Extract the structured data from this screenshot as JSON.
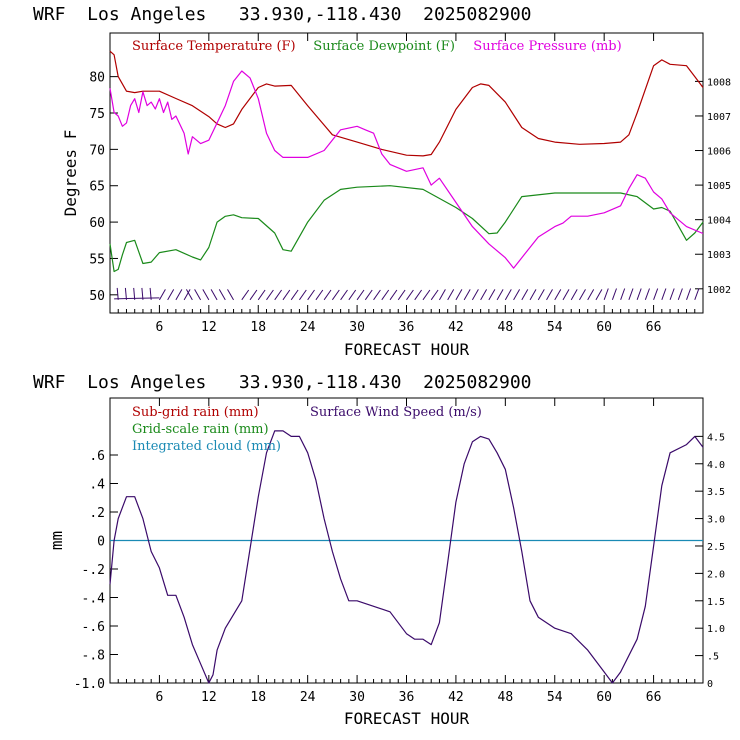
{
  "chart_data": [
    {
      "type": "line",
      "title": "WRF  Los Angeles   33.930,-118.430  2025082900",
      "xlabel": "FORECAST HOUR",
      "ylabel": "Degrees F",
      "xlim": [
        0,
        72
      ],
      "xticks": [
        6,
        12,
        18,
        24,
        30,
        36,
        42,
        48,
        54,
        60,
        66
      ],
      "ylim": [
        47.5,
        86
      ],
      "yticks": [
        50,
        55,
        60,
        65,
        70,
        75,
        80
      ],
      "y2lim": [
        1001.3,
        1009.4
      ],
      "y2ticks": [
        1002,
        1003,
        1004,
        1005,
        1006,
        1007,
        1008
      ],
      "series": [
        {
          "name": "Surface Temperature (F)",
          "axis": "left",
          "color": "#b00000",
          "x": [
            0,
            0.5,
            1,
            2,
            3,
            4,
            6,
            8,
            10,
            12,
            13,
            14,
            15,
            16,
            18,
            19,
            20,
            22,
            24,
            27,
            30,
            33,
            36,
            38,
            39,
            40,
            42,
            44,
            45,
            46,
            48,
            50,
            52,
            54,
            57,
            60,
            62,
            63,
            64,
            66,
            67,
            68,
            70,
            71,
            72
          ],
          "y": [
            83.5,
            83,
            80,
            78,
            77.8,
            78,
            78,
            77,
            76,
            74.5,
            73.5,
            73,
            73.5,
            75.5,
            78.5,
            79,
            78.7,
            78.8,
            76,
            72,
            71,
            70,
            69.2,
            69.1,
            69.3,
            71,
            75.5,
            78.5,
            79,
            78.8,
            76.5,
            73,
            71.5,
            71,
            70.7,
            70.8,
            71,
            72,
            75,
            81.5,
            82.3,
            81.7,
            81.5,
            80,
            78.5
          ]
        },
        {
          "name": "Surface Dewpoint (F)",
          "axis": "left",
          "color": "#1a8a1a",
          "x": [
            0,
            0.5,
            1,
            1.5,
            2,
            3,
            4,
            5,
            6,
            8,
            10,
            11,
            12,
            13,
            14,
            15,
            16,
            18,
            20,
            21,
            22,
            24,
            26,
            28,
            30,
            34,
            38,
            42,
            44,
            46,
            47,
            48,
            50,
            54,
            58,
            60,
            62,
            64,
            66,
            67,
            68,
            70,
            71,
            72
          ],
          "y": [
            57,
            53.2,
            53.5,
            55.5,
            57.2,
            57.5,
            54.3,
            54.5,
            55.8,
            56.2,
            55.2,
            54.8,
            56.5,
            60,
            60.8,
            61,
            60.6,
            60.5,
            58.5,
            56.2,
            56,
            60,
            63,
            64.5,
            64.8,
            65,
            64.5,
            62,
            60.5,
            58.4,
            58.5,
            60,
            63.5,
            64,
            64,
            64,
            64,
            63.5,
            61.8,
            62,
            61.5,
            57.5,
            58.5,
            60
          ]
        },
        {
          "name": "Surface Pressure (mb)",
          "axis": "right",
          "color": "#e000e0",
          "x": [
            0,
            0.5,
            1,
            1.5,
            2,
            2.5,
            3,
            3.5,
            4,
            4.5,
            5,
            5.5,
            6,
            6.5,
            7,
            7.5,
            8,
            9,
            9.5,
            10,
            11,
            12,
            13,
            14,
            15,
            16,
            17,
            18,
            19,
            20,
            21,
            22,
            24,
            26,
            28,
            30,
            31,
            32,
            33,
            34,
            36,
            38,
            39,
            40,
            42,
            44,
            46,
            48,
            49,
            50,
            52,
            54,
            55,
            56,
            58,
            60,
            62,
            63,
            64,
            65,
            66,
            67,
            68,
            70,
            72
          ],
          "y": [
            1007.8,
            1007.1,
            1007.0,
            1006.7,
            1006.8,
            1007.3,
            1007.5,
            1007.1,
            1007.7,
            1007.3,
            1007.4,
            1007.2,
            1007.5,
            1007.1,
            1007.4,
            1006.9,
            1007.0,
            1006.5,
            1005.9,
            1006.4,
            1006.2,
            1006.3,
            1006.8,
            1007.3,
            1008.0,
            1008.3,
            1008.1,
            1007.5,
            1006.5,
            1006.0,
            1005.8,
            1005.8,
            1005.8,
            1006.0,
            1006.6,
            1006.7,
            1006.6,
            1006.5,
            1005.9,
            1005.6,
            1005.4,
            1005.5,
            1005.0,
            1005.2,
            1004.5,
            1003.8,
            1003.3,
            1002.9,
            1002.6,
            1002.9,
            1003.5,
            1003.8,
            1003.9,
            1004.1,
            1004.1,
            1004.2,
            1004.4,
            1004.9,
            1005.3,
            1005.2,
            1004.8,
            1004.6,
            1004.2,
            1003.8,
            1003.6
          ]
        }
      ],
      "annotations": [
        "wind barbs along 50°F line"
      ]
    },
    {
      "type": "line",
      "title": "WRF  Los Angeles   33.930,-118.430  2025082900",
      "xlabel": "FORECAST HOUR",
      "ylabel": "mm",
      "xlim": [
        0,
        72
      ],
      "xticks": [
        6,
        12,
        18,
        24,
        30,
        36,
        42,
        48,
        54,
        60,
        66
      ],
      "ylim": [
        -1.0,
        1.0
      ],
      "yticks": [
        -1.0,
        -0.8,
        -0.6,
        -0.4,
        -0.2,
        0,
        0.2,
        0.4,
        0.6
      ],
      "ytick_labels": [
        "-1.0",
        "-.8",
        "-.6",
        "-.4",
        "-.2",
        "0",
        ".2",
        ".4",
        ".6"
      ],
      "y2lim": [
        0,
        5.2
      ],
      "y2ticks": [
        0,
        0.5,
        1.0,
        1.5,
        2.0,
        2.5,
        3.0,
        3.5,
        4.0,
        4.5
      ],
      "y2tick_labels": [
        "0",
        ".5",
        "1.0",
        "1.5",
        "2.0",
        "2.5",
        "3.0",
        "3.5",
        "4.0",
        "4.5"
      ],
      "series": [
        {
          "name": "Sub-grid rain (mm)",
          "axis": "left",
          "color": "#b00000",
          "x": [],
          "y": []
        },
        {
          "name": "Grid-scale rain (mm)",
          "axis": "left",
          "color": "#1a8a1a",
          "x": [],
          "y": []
        },
        {
          "name": "Integrated cloud (mm)",
          "axis": "left",
          "color": "#1a8ab4",
          "x": [
            0,
            72
          ],
          "y": [
            0,
            0
          ]
        },
        {
          "name": "Surface Wind Speed (m/s)",
          "axis": "right",
          "color": "#3a0a6a",
          "x": [
            0,
            0.5,
            1,
            2,
            3,
            4,
            5,
            6,
            7,
            8,
            9,
            10,
            11,
            12,
            12.5,
            13,
            14,
            16,
            18,
            19,
            20,
            21,
            22,
            23,
            24,
            25,
            26,
            27,
            28,
            29,
            30,
            32,
            34,
            36,
            37,
            38,
            39,
            40,
            41,
            42,
            43,
            44,
            45,
            46,
            47,
            48,
            49,
            50,
            51,
            52,
            54,
            56,
            58,
            60,
            61,
            62,
            64,
            65,
            66,
            67,
            68,
            70,
            71,
            72
          ],
          "y": [
            1.8,
            2.6,
            3.0,
            3.4,
            3.4,
            3.0,
            2.4,
            2.1,
            1.6,
            1.6,
            1.2,
            0.7,
            0.35,
            0.0,
            0.15,
            0.6,
            1.0,
            1.5,
            3.4,
            4.2,
            4.6,
            4.6,
            4.5,
            4.5,
            4.2,
            3.7,
            3.0,
            2.4,
            1.9,
            1.5,
            1.5,
            1.4,
            1.3,
            0.9,
            0.8,
            0.8,
            0.7,
            1.1,
            2.2,
            3.3,
            4.0,
            4.4,
            4.5,
            4.45,
            4.2,
            3.9,
            3.2,
            2.4,
            1.5,
            1.2,
            1.0,
            0.9,
            0.6,
            0.2,
            0.0,
            0.2,
            0.8,
            1.4,
            2.5,
            3.6,
            4.2,
            4.35,
            4.5,
            4.3
          ]
        }
      ]
    }
  ]
}
